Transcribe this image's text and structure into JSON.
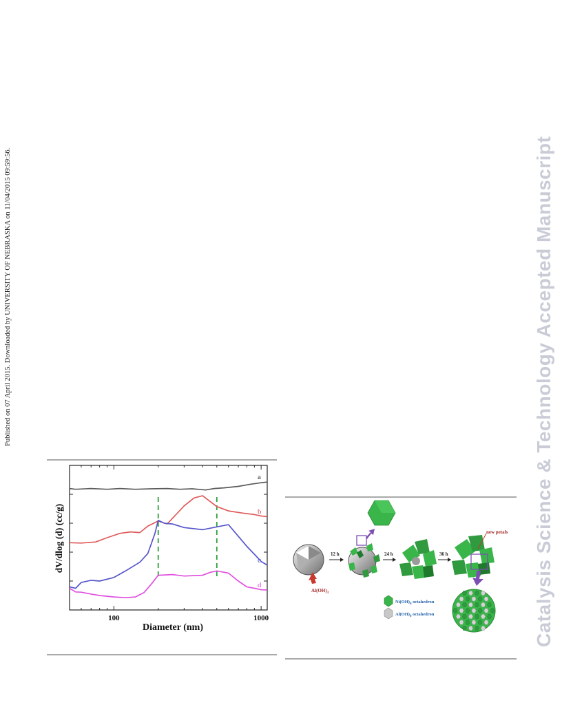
{
  "page": {
    "side_note": "Published on 07 April 2015. Downloaded by UNIVERSITY OF NEBRASKA on 11/04/2015 09:59:56.",
    "watermark": "Catalysis Science & Technology Accepted Manuscript"
  },
  "chart_data": {
    "type": "line",
    "xlabel": "Diameter (nm)",
    "ylabel": "dV/dlog (d) (cc/g)",
    "x_scale": "log",
    "xlim": [
      50,
      1100
    ],
    "ylim": [
      0,
      1
    ],
    "xticks": [
      100,
      1000
    ],
    "xtick_labels": [
      "100",
      "1000"
    ],
    "yticks": [
      0.2,
      0.4,
      0.6,
      0.8
    ],
    "grid": false,
    "reference_lines": [
      200,
      500
    ],
    "reference_color": "#2e9e3e",
    "series": [
      {
        "name": "a",
        "color": "#5a5a5a",
        "x": [
          50,
          55,
          70,
          90,
          110,
          140,
          180,
          230,
          280,
          340,
          420,
          480,
          560,
          700,
          850,
          1000,
          1100
        ],
        "y": [
          0.84,
          0.835,
          0.84,
          0.835,
          0.84,
          0.835,
          0.838,
          0.84,
          0.835,
          0.838,
          0.83,
          0.84,
          0.845,
          0.855,
          0.87,
          0.88,
          0.885
        ]
      },
      {
        "name": "b",
        "color": "#e05a5a",
        "x": [
          50,
          60,
          75,
          90,
          110,
          130,
          150,
          170,
          200,
          230,
          300,
          350,
          400,
          500,
          600,
          750,
          900,
          1000,
          1100
        ],
        "y": [
          0.465,
          0.463,
          0.47,
          0.5,
          0.53,
          0.54,
          0.535,
          0.58,
          0.615,
          0.595,
          0.72,
          0.775,
          0.79,
          0.715,
          0.685,
          0.67,
          0.66,
          0.65,
          0.645
        ]
      },
      {
        "name": "c",
        "color": "#5555cc",
        "x": [
          50,
          55,
          60,
          70,
          80,
          100,
          120,
          150,
          170,
          190,
          200,
          220,
          250,
          300,
          400,
          500,
          600,
          800,
          900,
          1000,
          1100
        ],
        "y": [
          0.16,
          0.15,
          0.19,
          0.205,
          0.2,
          0.225,
          0.27,
          0.33,
          0.39,
          0.53,
          0.62,
          0.6,
          0.595,
          0.57,
          0.555,
          0.575,
          0.59,
          0.44,
          0.385,
          0.335,
          0.31
        ]
      },
      {
        "name": "d",
        "color": "#e050e0",
        "x": [
          50,
          55,
          60,
          70,
          80,
          100,
          120,
          140,
          160,
          180,
          200,
          250,
          300,
          400,
          450,
          500,
          600,
          700,
          800,
          900,
          1000,
          1100
        ],
        "y": [
          0.15,
          0.125,
          0.123,
          0.11,
          0.1,
          0.09,
          0.085,
          0.09,
          0.12,
          0.18,
          0.24,
          0.245,
          0.235,
          0.24,
          0.26,
          0.27,
          0.255,
          0.2,
          0.16,
          0.15,
          0.14,
          0.138
        ]
      }
    ]
  },
  "scheme": {
    "step_labels": [
      "12 h",
      "24 h",
      "36 h"
    ],
    "release_label": "Al(OH)",
    "release_sub": "3",
    "new_petals_label": "new petals",
    "legend": [
      {
        "label": "Ni(OH)",
        "sub": "6",
        "suffix": " octahedron",
        "color": "#39b54a"
      },
      {
        "label": "Al(OH)",
        "sub": "6",
        "suffix": " octahedron",
        "color": "#bfbfbf"
      }
    ],
    "colors": {
      "green": "#39b54a",
      "dark_green": "#1f7a2c",
      "grey": "#9b9b9b",
      "purple": "#7d4fb3",
      "red": "#c8392f",
      "label_blue": "#1d5fa8",
      "label_red": "#a52a2a"
    }
  }
}
